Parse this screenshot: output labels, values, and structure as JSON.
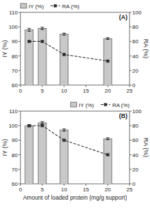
{
  "chart_data": [
    {
      "type": "bar",
      "title": "(A)",
      "x": [
        2,
        5,
        10,
        20
      ],
      "series": [
        {
          "name": "IY (%)",
          "type": "bar",
          "color": "#c8c8c8",
          "values": [
            98,
            99,
            95,
            92
          ],
          "errors": [
            1.0,
            0.8,
            0.7,
            0.6
          ]
        },
        {
          "name": "RA (%)",
          "type": "line",
          "axis": "y2",
          "color": "#303030",
          "marker": "square",
          "line_style": "dashed",
          "values": [
            60,
            60,
            42,
            33
          ],
          "errors": [
            1.0,
            0.8,
            1.2,
            1.0
          ]
        }
      ],
      "xlim": [
        0,
        25
      ],
      "xticks": [
        0,
        5,
        10,
        15,
        20,
        25
      ],
      "ylim": [
        60,
        110
      ],
      "yticks": [
        60,
        70,
        80,
        90,
        100,
        110
      ],
      "y2lim": [
        0,
        100
      ],
      "y2ticks": [
        0,
        20,
        40,
        60,
        80,
        100
      ],
      "ylabel": "IY (%)",
      "y2label": "RA (%)",
      "legend": "top"
    },
    {
      "type": "bar",
      "title": "(B)",
      "x": [
        2,
        5,
        10,
        20
      ],
      "series": [
        {
          "name": "IY (%)",
          "type": "bar",
          "color": "#c8c8c8",
          "values": [
            100,
            102,
            97,
            91
          ],
          "errors": [
            0.8,
            0.8,
            0.8,
            0.7
          ]
        },
        {
          "name": "RA (%)",
          "type": "line",
          "axis": "y2",
          "color": "#303030",
          "marker": "square",
          "line_style": "dashed",
          "values": [
            80,
            80,
            60,
            40
          ],
          "errors": [
            1.0,
            0.8,
            1.0,
            0.9
          ]
        }
      ],
      "xlim": [
        0,
        25
      ],
      "xticks": [
        0,
        5,
        10,
        15,
        20,
        25
      ],
      "ylim": [
        60,
        110
      ],
      "yticks": [
        60,
        70,
        80,
        90,
        100,
        110
      ],
      "y2lim": [
        0,
        100
      ],
      "y2ticks": [
        0,
        20,
        40,
        60,
        80,
        100
      ],
      "xlabel": "Amount of loaded protein (mg/g support)",
      "ylabel": "IY (%)",
      "y2label": "RA (%)",
      "legend": "upper right"
    }
  ]
}
